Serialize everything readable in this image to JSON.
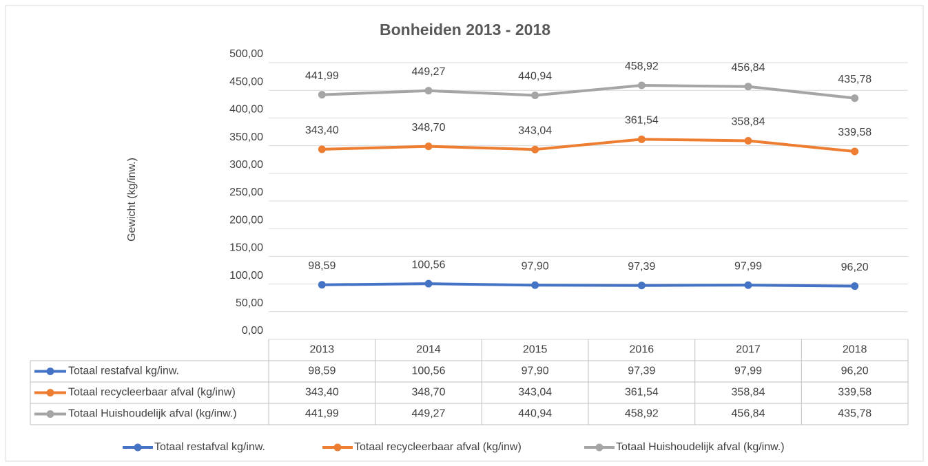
{
  "chart_data": {
    "type": "line",
    "title": "Bonheiden 2013 - 2018",
    "y_label": "Gewicht (kg/inw.)",
    "categories": [
      "2013",
      "2014",
      "2015",
      "2016",
      "2017",
      "2018"
    ],
    "series": [
      {
        "name": "Totaal restafval kg/inw.",
        "color": "#4472c4",
        "values": [
          98.59,
          100.56,
          97.9,
          97.39,
          97.99,
          96.2
        ],
        "value_labels": [
          "98,59",
          "100,56",
          "97,90",
          "97,39",
          "97,99",
          "96,20"
        ]
      },
      {
        "name": "Totaal recycleerbaar afval (kg/inw)",
        "color": "#ed7d31",
        "values": [
          343.4,
          348.7,
          343.04,
          361.54,
          358.84,
          339.58
        ],
        "value_labels": [
          "343,40",
          "348,70",
          "343,04",
          "361,54",
          "358,84",
          "339,58"
        ]
      },
      {
        "name": "Totaal Huishoudelijk afval (kg/inw.)",
        "color": "#a5a5a5",
        "values": [
          441.99,
          449.27,
          440.94,
          458.92,
          456.84,
          435.78
        ],
        "value_labels": [
          "441,99",
          "449,27",
          "440,94",
          "458,92",
          "456,84",
          "435,78"
        ]
      }
    ],
    "ylim": [
      0,
      500
    ],
    "yticks": [
      {
        "value": 0,
        "label": "0,00"
      },
      {
        "value": 50,
        "label": "50,00"
      },
      {
        "value": 100,
        "label": "100,00"
      },
      {
        "value": 150,
        "label": "150,00"
      },
      {
        "value": 200,
        "label": "200,00"
      },
      {
        "value": 250,
        "label": "250,00"
      },
      {
        "value": 300,
        "label": "300,00"
      },
      {
        "value": 350,
        "label": "350,00"
      },
      {
        "value": 400,
        "label": "400,00"
      },
      {
        "value": 450,
        "label": "450,00"
      },
      {
        "value": 500,
        "label": "500,00"
      }
    ],
    "grid": true,
    "legend": "bottom",
    "data_table": true
  }
}
